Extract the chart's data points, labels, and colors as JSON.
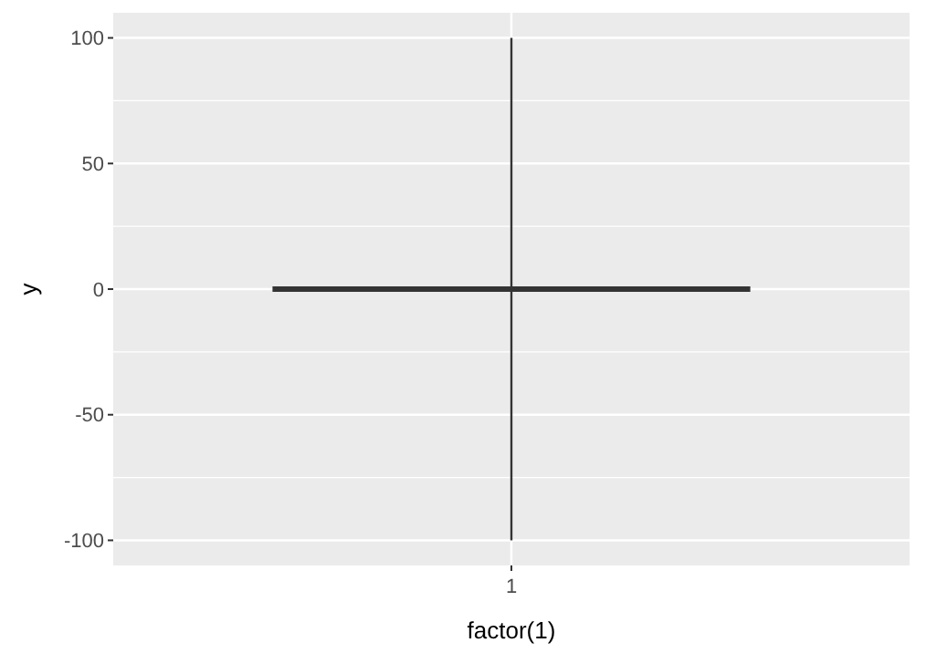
{
  "chart_data": {
    "type": "box",
    "xlabel": "factor(1)",
    "ylabel": "y",
    "categories": [
      "1"
    ],
    "boxes": [
      {
        "low": -100,
        "q1": 0,
        "median": 0,
        "q3": 0,
        "high": 100
      }
    ],
    "color": "#333333",
    "ylim": [
      -110,
      110
    ],
    "yticks": [
      -100,
      -50,
      0,
      50,
      100
    ],
    "grid": true
  }
}
